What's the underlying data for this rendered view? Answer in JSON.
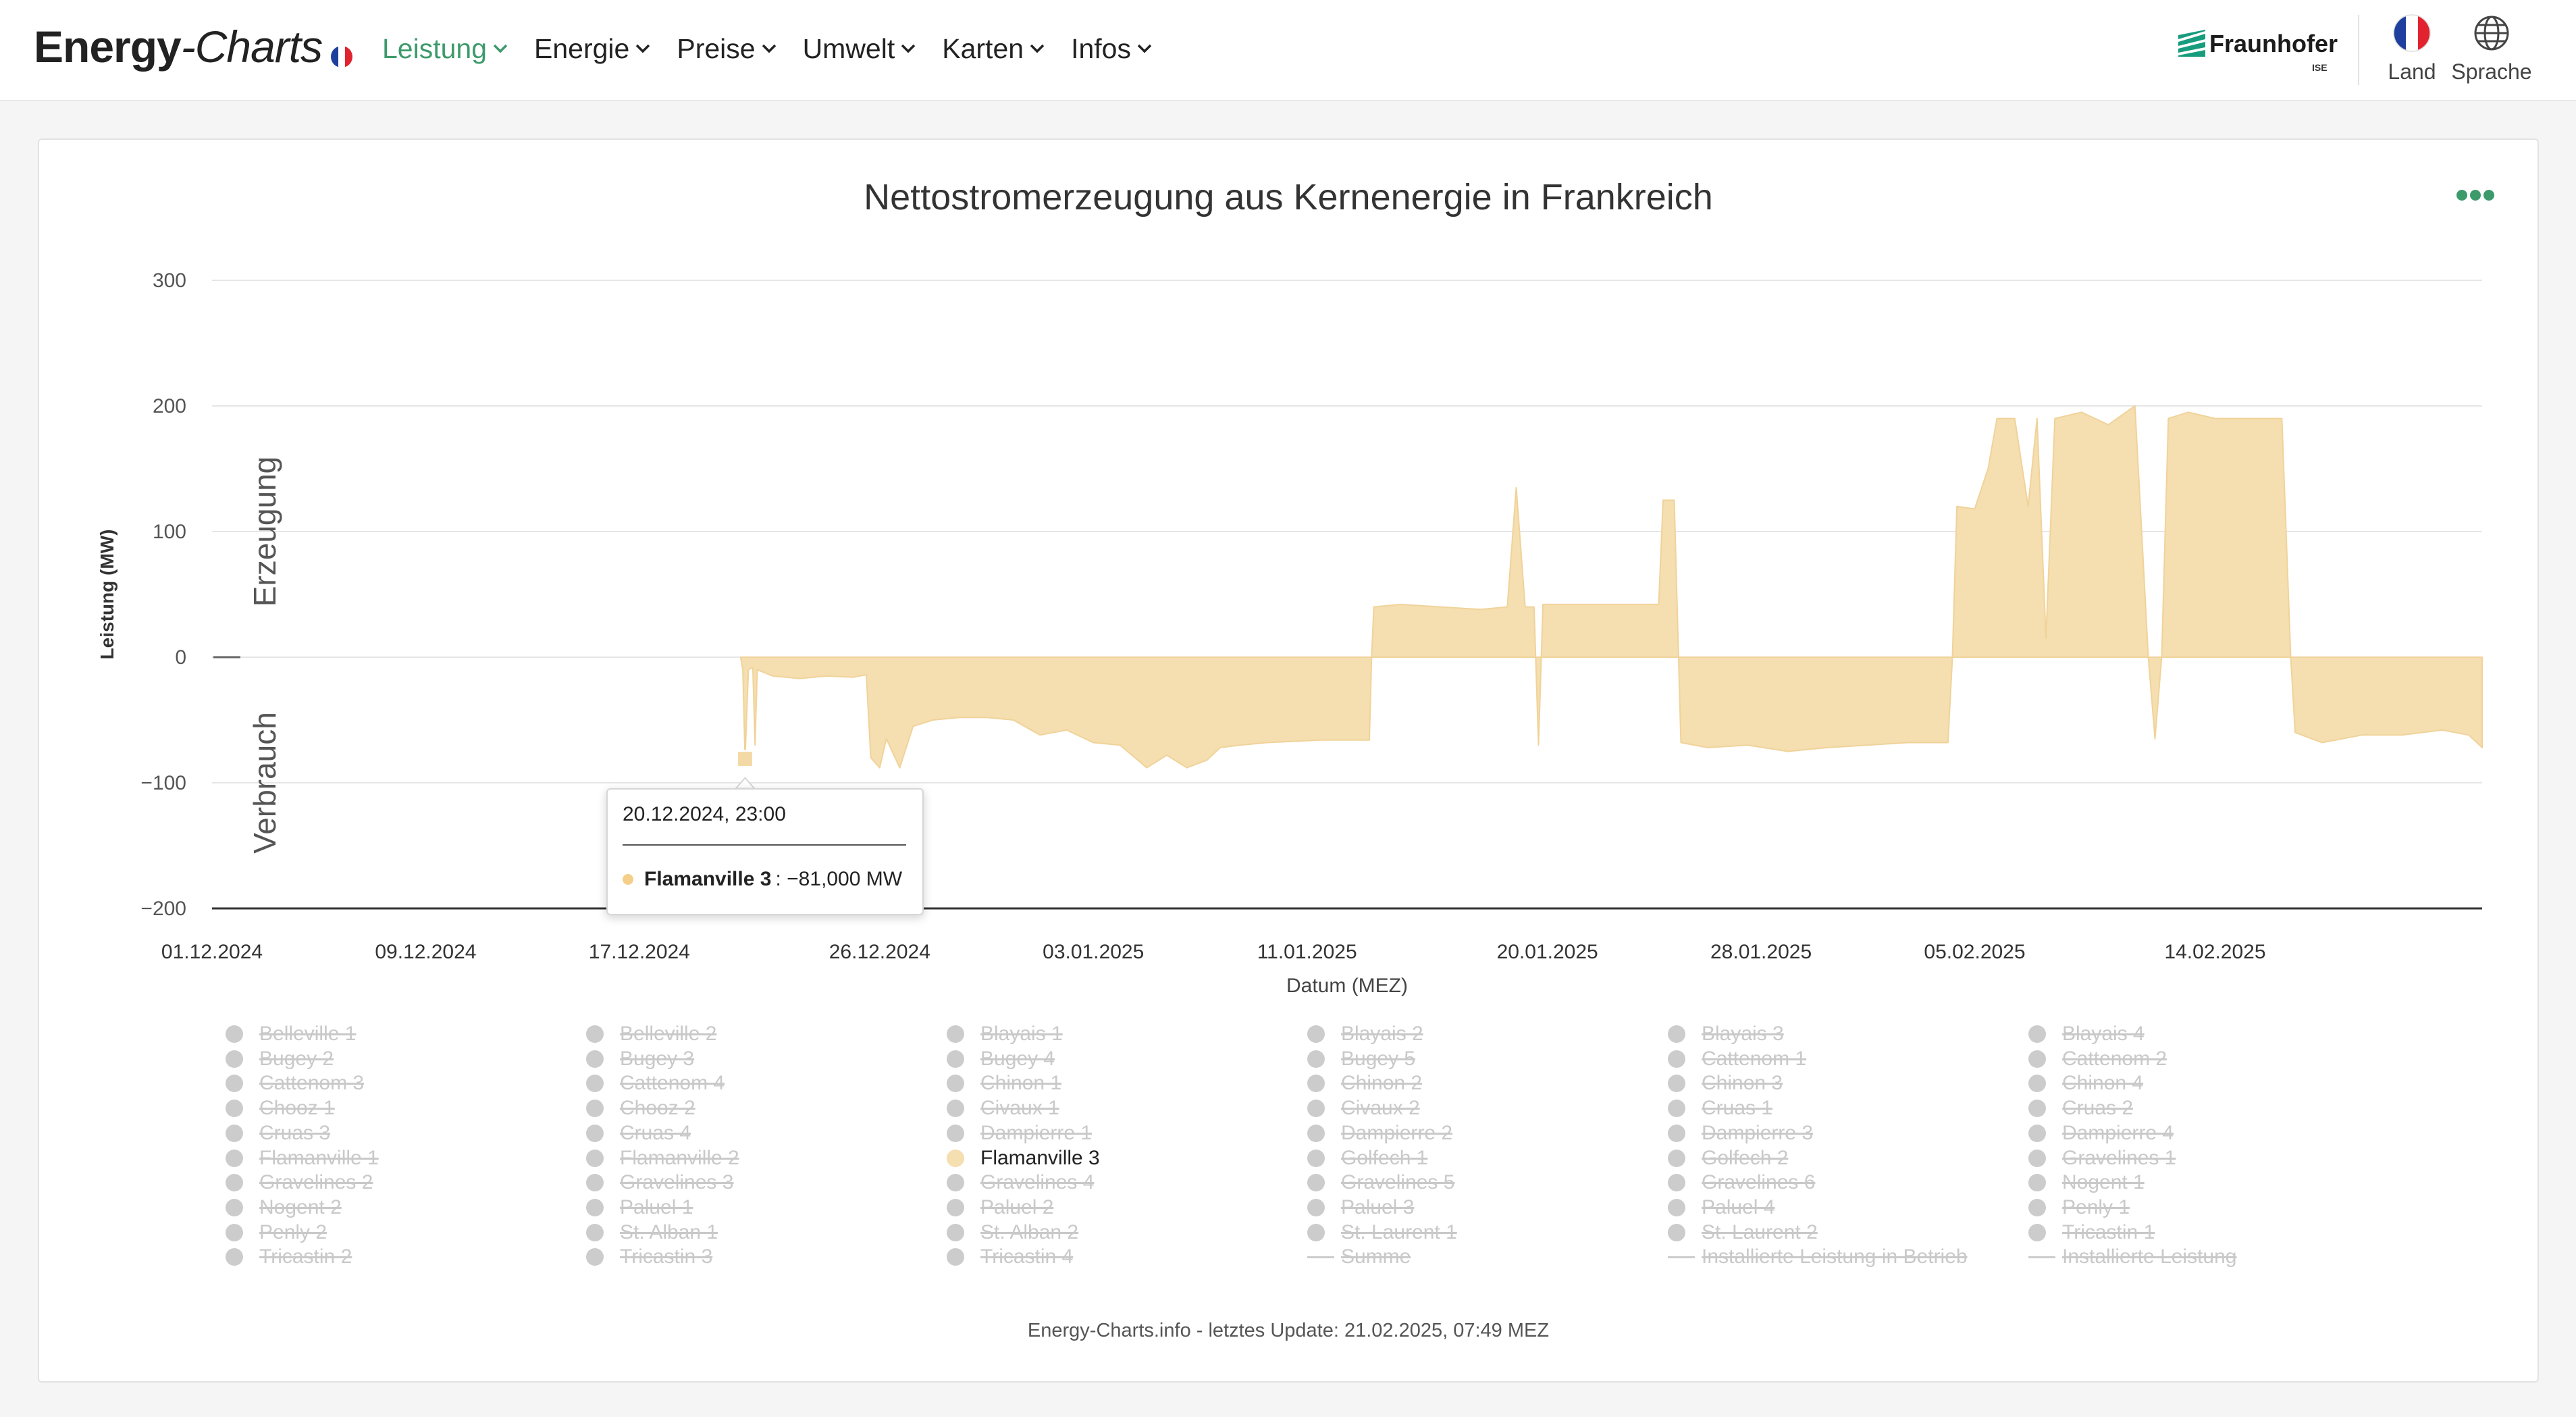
{
  "header": {
    "logo_part1": "Energy",
    "logo_part2": "-Charts",
    "nav": [
      {
        "label": "Leistung",
        "active": true
      },
      {
        "label": "Energie",
        "active": false
      },
      {
        "label": "Preise",
        "active": false
      },
      {
        "label": "Umwelt",
        "active": false
      },
      {
        "label": "Karten",
        "active": false
      },
      {
        "label": "Infos",
        "active": false
      }
    ],
    "partner_name": "Fraunhofer",
    "partner_sub": "ISE",
    "country_label": "Land",
    "language_label": "Sprache"
  },
  "colors": {
    "accent": "#3d9a6b",
    "series_fill": "#f5deb0",
    "series_stroke": "#f0d39a",
    "inactive": "#cccccc"
  },
  "chart_data": {
    "type": "area",
    "title": "Nettostromerzeugung aus Kernenergie in Frankreich",
    "xlabel": "Datum (MEZ)",
    "ylabel": "Leistung (MW)",
    "ylabel_positive": "Erzeugung",
    "ylabel_negative": "Verbrauch",
    "ylim": [
      -200,
      300
    ],
    "yticks": [
      300,
      200,
      100,
      0,
      -100,
      -200
    ],
    "ytick_labels": [
      "300",
      "200",
      "100",
      "0",
      "−100",
      "−200"
    ],
    "xlim": [
      "2024-12-01",
      "2025-02-24"
    ],
    "xticks": [
      {
        "date": "2024-12-01",
        "label": "01.12.2024"
      },
      {
        "date": "2024-12-09",
        "label": "09.12.2024"
      },
      {
        "date": "2024-12-17",
        "label": "17.12.2024"
      },
      {
        "date": "2024-12-26",
        "label": "26.12.2024"
      },
      {
        "date": "2025-01-03",
        "label": "03.01.2025"
      },
      {
        "date": "2025-01-11",
        "label": "11.01.2025"
      },
      {
        "date": "2025-01-20",
        "label": "20.01.2025"
      },
      {
        "date": "2025-01-28",
        "label": "28.01.2025"
      },
      {
        "date": "2025-02-05",
        "label": "05.02.2025"
      },
      {
        "date": "2025-02-14",
        "label": "14.02.2025"
      }
    ],
    "grid": true,
    "legend_position": "bottom",
    "series": [
      {
        "name": "Flamanville 3",
        "unit": "MW",
        "points": [
          [
            "2024-12-20 19:00",
            0
          ],
          [
            "2024-12-20 21:00",
            -10
          ],
          [
            "2024-12-20 23:00",
            -81
          ],
          [
            "2024-12-21 02:00",
            -10
          ],
          [
            "2024-12-21 06:00",
            -8
          ],
          [
            "2024-12-21 08:00",
            -70
          ],
          [
            "2024-12-21 10:00",
            -10
          ],
          [
            "2024-12-22 00:00",
            -15
          ],
          [
            "2024-12-23 00:00",
            -17
          ],
          [
            "2024-12-24 00:00",
            -15
          ],
          [
            "2024-12-25 00:00",
            -16
          ],
          [
            "2024-12-25 12:00",
            -14
          ],
          [
            "2024-12-25 16:00",
            -80
          ],
          [
            "2024-12-26 00:00",
            -88
          ],
          [
            "2024-12-26 06:00",
            -65
          ],
          [
            "2024-12-26 18:00",
            -88
          ],
          [
            "2024-12-27 06:00",
            -55
          ],
          [
            "2024-12-28 00:00",
            -50
          ],
          [
            "2024-12-29 00:00",
            -48
          ],
          [
            "2024-12-30 00:00",
            -48
          ],
          [
            "2024-12-31 00:00",
            -50
          ],
          [
            "2025-01-01 00:00",
            -62
          ],
          [
            "2025-01-02 00:00",
            -58
          ],
          [
            "2025-01-03 00:00",
            -68
          ],
          [
            "2025-01-04 00:00",
            -70
          ],
          [
            "2025-01-05 00:00",
            -88
          ],
          [
            "2025-01-05 18:00",
            -78
          ],
          [
            "2025-01-06 12:00",
            -88
          ],
          [
            "2025-01-07 06:00",
            -82
          ],
          [
            "2025-01-07 18:00",
            -72
          ],
          [
            "2025-01-08 12:00",
            -70
          ],
          [
            "2025-01-09 12:00",
            -68
          ],
          [
            "2025-01-10 12:00",
            -67
          ],
          [
            "2025-01-11 12:00",
            -66
          ],
          [
            "2025-01-12 12:00",
            -66
          ],
          [
            "2025-01-13 08:00",
            -66
          ],
          [
            "2025-01-13 10:00",
            0
          ],
          [
            "2025-01-13 12:00",
            40
          ],
          [
            "2025-01-14 12:00",
            42
          ],
          [
            "2025-01-16 00:00",
            40
          ],
          [
            "2025-01-17 12:00",
            38
          ],
          [
            "2025-01-18 12:00",
            40
          ],
          [
            "2025-01-18 20:00",
            135
          ],
          [
            "2025-01-19 04:00",
            40
          ],
          [
            "2025-01-19 12:00",
            40
          ],
          [
            "2025-01-19 16:00",
            -70
          ],
          [
            "2025-01-19 20:00",
            42
          ],
          [
            "2025-01-21 00:00",
            42
          ],
          [
            "2025-01-23 00:00",
            42
          ],
          [
            "2025-01-24 04:00",
            42
          ],
          [
            "2025-01-24 08:00",
            125
          ],
          [
            "2025-01-24 18:00",
            125
          ],
          [
            "2025-01-25 00:00",
            -68
          ],
          [
            "2025-01-26 00:00",
            -72
          ],
          [
            "2025-01-27 12:00",
            -70
          ],
          [
            "2025-01-29 00:00",
            -75
          ],
          [
            "2025-01-30 12:00",
            -72
          ],
          [
            "2025-02-01 00:00",
            -70
          ],
          [
            "2025-02-02 12:00",
            -68
          ],
          [
            "2025-02-04 00:00",
            -68
          ],
          [
            "2025-02-04 04:00",
            0
          ],
          [
            "2025-02-04 08:00",
            120
          ],
          [
            "2025-02-05 00:00",
            118
          ],
          [
            "2025-02-05 12:00",
            150
          ],
          [
            "2025-02-05 20:00",
            190
          ],
          [
            "2025-02-06 12:00",
            190
          ],
          [
            "2025-02-07 00:00",
            120
          ],
          [
            "2025-02-07 08:00",
            190
          ],
          [
            "2025-02-07 16:00",
            15
          ],
          [
            "2025-02-08 00:00",
            190
          ],
          [
            "2025-02-09 00:00",
            195
          ],
          [
            "2025-02-10 00:00",
            185
          ],
          [
            "2025-02-11 00:00",
            200
          ],
          [
            "2025-02-11 12:00",
            0
          ],
          [
            "2025-02-11 18:00",
            -65
          ],
          [
            "2025-02-12 00:00",
            0
          ],
          [
            "2025-02-12 06:00",
            190
          ],
          [
            "2025-02-13 00:00",
            195
          ],
          [
            "2025-02-14 00:00",
            190
          ],
          [
            "2025-02-15 00:00",
            190
          ],
          [
            "2025-02-16 12:00",
            190
          ],
          [
            "2025-02-16 20:00",
            0
          ],
          [
            "2025-02-17 00:00",
            -60
          ],
          [
            "2025-02-18 00:00",
            -68
          ],
          [
            "2025-02-19 12:00",
            -62
          ],
          [
            "2025-02-21 00:00",
            -62
          ],
          [
            "2025-02-22 12:00",
            -58
          ],
          [
            "2025-02-23 12:00",
            -62
          ],
          [
            "2025-02-24 00:00",
            -72
          ]
        ]
      }
    ],
    "tooltip": {
      "date": "20.12.2024, 23:00",
      "series": "Flamanville 3",
      "value_text": ": −81,000 MW",
      "point": [
        "2024-12-20 23:00",
        -81
      ]
    },
    "legend": [
      {
        "label": "Belleville 1",
        "active": false
      },
      {
        "label": "Belleville 2",
        "active": false
      },
      {
        "label": "Blayais 1",
        "active": false
      },
      {
        "label": "Blayais 2",
        "active": false
      },
      {
        "label": "Blayais 3",
        "active": false
      },
      {
        "label": "Blayais 4",
        "active": false
      },
      {
        "label": "Bugey 2",
        "active": false
      },
      {
        "label": "Bugey 3",
        "active": false
      },
      {
        "label": "Bugey 4",
        "active": false
      },
      {
        "label": "Bugey 5",
        "active": false
      },
      {
        "label": "Cattenom 1",
        "active": false
      },
      {
        "label": "Cattenom 2",
        "active": false
      },
      {
        "label": "Cattenom 3",
        "active": false
      },
      {
        "label": "Cattenom 4",
        "active": false
      },
      {
        "label": "Chinon 1",
        "active": false
      },
      {
        "label": "Chinon 2",
        "active": false
      },
      {
        "label": "Chinon 3",
        "active": false
      },
      {
        "label": "Chinon 4",
        "active": false
      },
      {
        "label": "Chooz 1",
        "active": false
      },
      {
        "label": "Chooz 2",
        "active": false
      },
      {
        "label": "Civaux 1",
        "active": false
      },
      {
        "label": "Civaux 2",
        "active": false
      },
      {
        "label": "Cruas 1",
        "active": false
      },
      {
        "label": "Cruas 2",
        "active": false
      },
      {
        "label": "Cruas 3",
        "active": false
      },
      {
        "label": "Cruas 4",
        "active": false
      },
      {
        "label": "Dampierre 1",
        "active": false
      },
      {
        "label": "Dampierre 2",
        "active": false
      },
      {
        "label": "Dampierre 3",
        "active": false
      },
      {
        "label": "Dampierre 4",
        "active": false
      },
      {
        "label": "Flamanville 1",
        "active": false
      },
      {
        "label": "Flamanville 2",
        "active": false
      },
      {
        "label": "Flamanville 3",
        "active": true
      },
      {
        "label": "Golfech 1",
        "active": false
      },
      {
        "label": "Golfech 2",
        "active": false
      },
      {
        "label": "Gravelines 1",
        "active": false
      },
      {
        "label": "Gravelines 2",
        "active": false
      },
      {
        "label": "Gravelines 3",
        "active": false
      },
      {
        "label": "Gravelines 4",
        "active": false
      },
      {
        "label": "Gravelines 5",
        "active": false
      },
      {
        "label": "Gravelines 6",
        "active": false
      },
      {
        "label": "Nogent 1",
        "active": false
      },
      {
        "label": "Nogent 2",
        "active": false
      },
      {
        "label": "Paluel 1",
        "active": false
      },
      {
        "label": "Paluel 2",
        "active": false
      },
      {
        "label": "Paluel 3",
        "active": false
      },
      {
        "label": "Paluel 4",
        "active": false
      },
      {
        "label": "Penly 1",
        "active": false
      },
      {
        "label": "Penly 2",
        "active": false
      },
      {
        "label": "St. Alban 1",
        "active": false
      },
      {
        "label": "St. Alban 2",
        "active": false
      },
      {
        "label": "St. Laurent 1",
        "active": false
      },
      {
        "label": "St. Laurent 2",
        "active": false
      },
      {
        "label": "Tricastin 1",
        "active": false
      },
      {
        "label": "Tricastin 2",
        "active": false
      },
      {
        "label": "Tricastin 3",
        "active": false
      },
      {
        "label": "Tricastin 4",
        "active": false
      },
      {
        "label": "Summe",
        "active": false,
        "marker": "line"
      },
      {
        "label": "Installierte Leistung in Betrieb",
        "active": false,
        "marker": "line"
      },
      {
        "label": "Installierte Leistung",
        "active": false,
        "marker": "line"
      }
    ]
  },
  "footer": {
    "update_note": "Energy-Charts.info - letztes Update: 21.02.2025, 07:49 MEZ"
  }
}
